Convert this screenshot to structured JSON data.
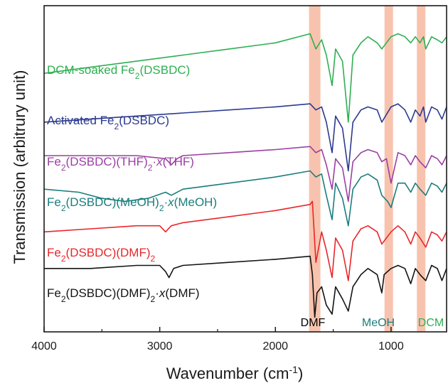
{
  "chart_data": {
    "type": "line",
    "title": "",
    "xlabel": "Wavenumber (cm",
    "xlabel_sup": "-1",
    "xlabel_end": ")",
    "ylabel": "Transmission (arbitrury unit)",
    "xlim": [
      4000,
      520
    ],
    "x_reversed": true,
    "xticks": [
      4000,
      3000,
      2000,
      1000
    ],
    "xtick_labels": [
      "4000",
      "3000",
      "2000",
      "1000"
    ],
    "grid": false,
    "legend": "none",
    "bands": [
      {
        "label": "DMF",
        "center": 1660,
        "color": "#000000",
        "band_color": "#f7b9a0"
      },
      {
        "label": "MeOH",
        "center": 1020,
        "color": "#1a7d7d",
        "band_color": "#f7b9a0"
      },
      {
        "label": "DCM",
        "center": 740,
        "color": "#2eaf52",
        "band_color": "#f7b9a0"
      }
    ],
    "series": [
      {
        "key": "dcm",
        "label": {
          "parts": [
            {
              "t": "DCM-soaked Fe"
            },
            {
              "t": "2",
              "sub": true
            },
            {
              "t": "(DSBDC)"
            }
          ]
        },
        "color": "#2eaf52",
        "baseline": 82,
        "x": [
          4000,
          3600,
          3200,
          2800,
          2400,
          2000,
          1700,
          1650,
          1600,
          1560,
          1510,
          1480,
          1420,
          1370,
          1330,
          1260,
          1200,
          1120,
          1080,
          1000,
          940,
          880,
          830,
          790,
          750,
          720,
          700,
          650,
          600,
          560,
          520
        ],
        "y": [
          82,
          84,
          86,
          88,
          90,
          92,
          95,
          90,
          93,
          88,
          78,
          90,
          86,
          66,
          88,
          92,
          94,
          92,
          90,
          94,
          95,
          94,
          92,
          94,
          92,
          94,
          90,
          94,
          93,
          92,
          94
        ]
      },
      {
        "key": "activated",
        "label": {
          "parts": [
            {
              "t": "Activated Fe"
            },
            {
              "t": "2",
              "sub": true
            },
            {
              "t": "(DSBDC)"
            }
          ]
        },
        "color": "#2b3a8f",
        "baseline": 66,
        "x": [
          4000,
          3600,
          3200,
          2800,
          2400,
          2000,
          1700,
          1650,
          1600,
          1560,
          1510,
          1480,
          1420,
          1370,
          1330,
          1260,
          1200,
          1120,
          1080,
          1000,
          940,
          880,
          830,
          790,
          750,
          720,
          700,
          650,
          600,
          560,
          520
        ],
        "y": [
          66,
          67,
          68,
          69,
          70,
          71,
          72,
          70,
          71,
          66,
          56,
          68,
          64,
          50,
          66,
          70,
          71,
          70,
          66,
          71,
          72,
          70,
          66,
          70,
          68,
          71,
          66,
          71,
          70,
          67,
          71
        ]
      },
      {
        "key": "thf",
        "label": {
          "parts": [
            {
              "t": "Fe"
            },
            {
              "t": "2",
              "sub": true
            },
            {
              "t": "(DSBDC)(THF)"
            },
            {
              "t": "2",
              "sub": true
            },
            {
              "t": "·"
            },
            {
              "t": "x",
              "italic": true
            },
            {
              "t": "(THF)"
            }
          ]
        },
        "color": "#9b3fa3",
        "baseline": 55,
        "x": [
          4000,
          3600,
          3200,
          2950,
          2900,
          2850,
          2800,
          2400,
          2000,
          1700,
          1650,
          1600,
          1560,
          1510,
          1480,
          1420,
          1370,
          1330,
          1260,
          1200,
          1120,
          1080,
          1040,
          1000,
          940,
          880,
          830,
          790,
          750,
          700,
          650,
          600,
          560,
          520
        ],
        "y": [
          55,
          55,
          55,
          54,
          52,
          54,
          55,
          56,
          57,
          58,
          56,
          57,
          52,
          44,
          54,
          51,
          40,
          53,
          56,
          57,
          56,
          53,
          54,
          46,
          56,
          55,
          52,
          55,
          53,
          51,
          55,
          54,
          52,
          55
        ]
      },
      {
        "key": "meoh",
        "label": {
          "parts": [
            {
              "t": "Fe"
            },
            {
              "t": "2",
              "sub": true
            },
            {
              "t": "(DSBDC)(MeOH)"
            },
            {
              "t": "2",
              "sub": true
            },
            {
              "t": "·"
            },
            {
              "t": "x",
              "italic": true
            },
            {
              "t": "(MeOH)"
            }
          ]
        },
        "color": "#1a7d7d",
        "baseline": 44,
        "x": [
          4000,
          3700,
          3500,
          3300,
          3100,
          2950,
          2900,
          2800,
          2400,
          2000,
          1700,
          1650,
          1600,
          1560,
          1510,
          1480,
          1420,
          1370,
          1330,
          1260,
          1200,
          1120,
          1080,
          1030,
          1000,
          940,
          880,
          830,
          790,
          750,
          700,
          650,
          600,
          560,
          520
        ],
        "y": [
          44,
          43,
          41,
          40,
          41,
          43,
          42,
          44,
          46,
          48,
          50,
          48,
          49,
          42,
          34,
          46,
          41,
          32,
          44,
          48,
          49,
          47,
          42,
          40,
          38,
          46,
          46,
          43,
          46,
          44,
          42,
          46,
          45,
          43,
          46
        ]
      },
      {
        "key": "dmf2",
        "label": {
          "parts": [
            {
              "t": "Fe"
            },
            {
              "t": "2",
              "sub": true
            },
            {
              "t": "(DSBDC)(DMF)"
            },
            {
              "t": "2",
              "sub": true
            }
          ]
        },
        "color": "#e8262a",
        "baseline": 30,
        "x": [
          4000,
          3600,
          3200,
          3000,
          2950,
          2900,
          2800,
          2400,
          2000,
          1700,
          1680,
          1650,
          1620,
          1600,
          1560,
          1510,
          1480,
          1420,
          1370,
          1330,
          1260,
          1200,
          1120,
          1080,
          1000,
          940,
          880,
          830,
          790,
          750,
          700,
          650,
          600,
          560,
          520
        ],
        "y": [
          30,
          31,
          32,
          32,
          30,
          32,
          33,
          35,
          37,
          39,
          40,
          20,
          26,
          30,
          24,
          15,
          28,
          24,
          14,
          27,
          31,
          32,
          30,
          26,
          30,
          32,
          30,
          26,
          30,
          28,
          25,
          30,
          29,
          27,
          30
        ]
      },
      {
        "key": "dmfx",
        "label": {
          "parts": [
            {
              "t": "Fe"
            },
            {
              "t": "2",
              "sub": true
            },
            {
              "t": "(DSBDC)(DMF)"
            },
            {
              "t": "2",
              "sub": true
            },
            {
              "t": "·"
            },
            {
              "t": "x",
              "italic": true
            },
            {
              "t": "(DMF)"
            }
          ]
        },
        "color": "#141414",
        "baseline": 18,
        "x": [
          4000,
          3600,
          3200,
          3000,
          2950,
          2920,
          2880,
          2800,
          2400,
          2000,
          1700,
          1680,
          1660,
          1640,
          1600,
          1560,
          1510,
          1480,
          1420,
          1370,
          1330,
          1260,
          1200,
          1120,
          1080,
          1060,
          1000,
          940,
          880,
          830,
          790,
          750,
          700,
          650,
          600,
          560,
          520
        ],
        "y": [
          18,
          18,
          19,
          19,
          17,
          15,
          18,
          19,
          20,
          21,
          22,
          16,
          2,
          10,
          12,
          6,
          3,
          12,
          8,
          4,
          12,
          16,
          18,
          16,
          10,
          16,
          18,
          19,
          18,
          13,
          18,
          16,
          14,
          19,
          18,
          14,
          18
        ]
      }
    ]
  }
}
